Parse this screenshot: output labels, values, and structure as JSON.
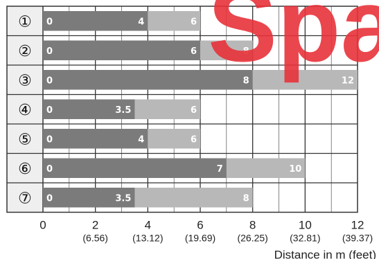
{
  "watermark": {
    "text": "Spai",
    "color": "#e8323a"
  },
  "colors": {
    "dark": "#7b7b7b",
    "light": "#b8b8b8",
    "grid": "#333333",
    "labelBg": "#efefef"
  },
  "chart_data": {
    "type": "bar",
    "orientation": "horizontal",
    "stacked_ranges": true,
    "categories": [
      "①",
      "②",
      "③",
      "④",
      "⑤",
      "⑥",
      "⑦"
    ],
    "series": [
      {
        "values": [
          4,
          6,
          8,
          3.5,
          4,
          7,
          3.5
        ]
      },
      {
        "values": [
          6,
          8,
          12,
          6,
          6,
          10,
          8
        ]
      }
    ],
    "start_label": "0",
    "x_ticks": [
      0,
      2,
      4,
      6,
      8,
      10,
      12
    ],
    "x_tick_labels": [
      "0",
      "2",
      "4",
      "6",
      "8",
      "10",
      "12"
    ],
    "x_tick_sublabels": [
      "",
      "(6.56)",
      "(13.12)",
      "(19.69)",
      "(26.25)",
      "(32.81)",
      "(39.37)"
    ],
    "xlim": [
      0,
      12
    ],
    "xlabel": "Distance in m (feet)",
    "grid": true
  }
}
